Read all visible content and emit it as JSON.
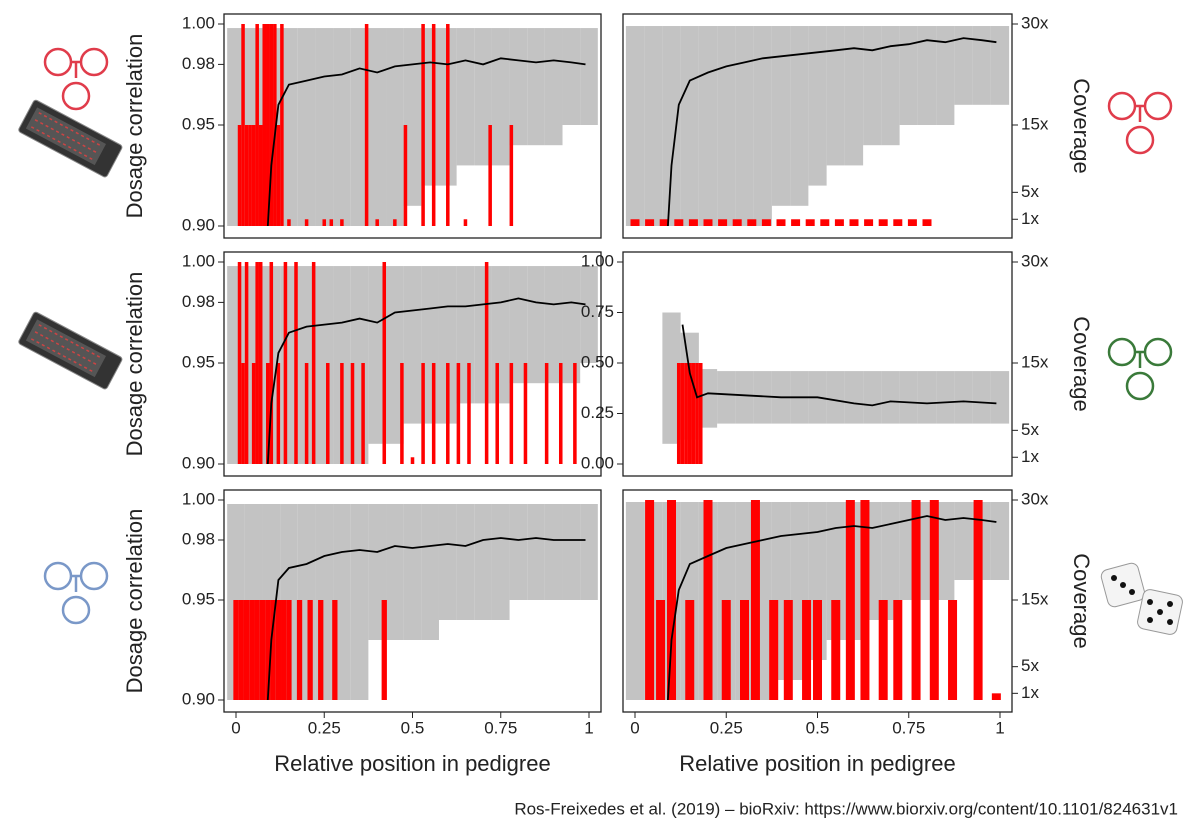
{
  "chart_data": [
    {
      "type": "scatter",
      "ylabel": "Dosage correlation",
      "xlim": [
        0,
        1
      ],
      "ylim": [
        0.9,
        1
      ],
      "y2lim": [
        0,
        30
      ],
      "yticks": [
        {
          "value": 0.9,
          "label": "0.90"
        },
        {
          "value": 0.95,
          "label": "0.95"
        },
        {
          "value": 0.98,
          "label": "0.98"
        },
        {
          "value": 1,
          "label": "1.00"
        }
      ],
      "cloud": {
        "color": "#bdbdbd",
        "x": [
          0,
          0.05,
          0.1,
          0.15,
          0.2,
          0.25,
          0.3,
          0.35,
          0.4,
          0.45,
          0.5,
          0.55,
          0.6,
          0.65,
          0.7,
          0.75,
          0.8,
          0.85,
          0.9,
          0.95,
          1
        ],
        "low": [
          0.9,
          0.9,
          0.9,
          0.9,
          0.9,
          0.9,
          0.9,
          0.9,
          0.9,
          0.9,
          0.91,
          0.92,
          0.92,
          0.93,
          0.93,
          0.93,
          0.94,
          0.94,
          0.94,
          0.95,
          0.95
        ],
        "high": [
          0.998,
          0.998,
          0.998,
          0.998,
          0.998,
          0.998,
          0.998,
          0.998,
          0.998,
          0.998,
          0.998,
          0.998,
          0.998,
          0.998,
          0.998,
          0.998,
          0.998,
          0.998,
          0.998,
          0.998,
          0.998
        ]
      },
      "line": {
        "color": "#000000",
        "x": [
          0.09,
          0.1,
          0.12,
          0.15,
          0.2,
          0.25,
          0.3,
          0.35,
          0.4,
          0.45,
          0.5,
          0.55,
          0.6,
          0.65,
          0.7,
          0.75,
          0.8,
          0.85,
          0.9,
          0.95,
          0.99
        ],
        "values": [
          0.9,
          0.93,
          0.96,
          0.97,
          0.972,
          0.974,
          0.975,
          0.978,
          0.976,
          0.979,
          0.98,
          0.981,
          0.98,
          0.982,
          0.98,
          0.983,
          0.982,
          0.981,
          0.982,
          0.981,
          0.98
        ]
      },
      "bars": {
        "color": "#ff0000",
        "axis": "y2",
        "x": [
          0.01,
          0.02,
          0.03,
          0.04,
          0.05,
          0.06,
          0.07,
          0.08,
          0.09,
          0.1,
          0.11,
          0.12,
          0.13,
          0.15,
          0.2,
          0.25,
          0.27,
          0.3,
          0.37,
          0.4,
          0.45,
          0.48,
          0.53,
          0.56,
          0.6,
          0.65,
          0.72,
          0.78
        ],
        "values": [
          15,
          30,
          15,
          15,
          15,
          30,
          15,
          30,
          30,
          30,
          30,
          15,
          30,
          1,
          1,
          1,
          1,
          1,
          30,
          1,
          1,
          15,
          30,
          30,
          30,
          1,
          15,
          15
        ]
      }
    },
    {
      "type": "scatter",
      "y2label": "Coverage",
      "xlim": [
        0,
        1
      ],
      "ylim": [
        0.9,
        1
      ],
      "y2lim": [
        0,
        30
      ],
      "y2ticks": [
        {
          "value": 1,
          "label": "1x"
        },
        {
          "value": 5,
          "label": "5x"
        },
        {
          "value": 15,
          "label": "15x"
        },
        {
          "value": 30,
          "label": "30x"
        }
      ],
      "cloud": {
        "color": "#bdbdbd",
        "x": [
          0,
          0.05,
          0.1,
          0.15,
          0.2,
          0.25,
          0.3,
          0.35,
          0.4,
          0.45,
          0.5,
          0.55,
          0.6,
          0.65,
          0.7,
          0.75,
          0.8,
          0.85,
          0.9,
          0.95,
          1
        ],
        "low": [
          0.9,
          0.9,
          0.9,
          0.9,
          0.9,
          0.9,
          0.9,
          0.9,
          0.91,
          0.91,
          0.92,
          0.93,
          0.93,
          0.94,
          0.94,
          0.95,
          0.95,
          0.95,
          0.96,
          0.96,
          0.96
        ],
        "high": [
          0.999,
          0.999,
          0.999,
          0.999,
          0.999,
          0.999,
          0.999,
          0.999,
          0.999,
          0.999,
          0.999,
          0.999,
          0.999,
          0.999,
          0.999,
          0.999,
          0.999,
          0.999,
          0.999,
          0.999,
          0.999
        ]
      },
      "line": {
        "color": "#000000",
        "x": [
          0.09,
          0.1,
          0.12,
          0.15,
          0.2,
          0.25,
          0.3,
          0.35,
          0.4,
          0.45,
          0.5,
          0.55,
          0.6,
          0.65,
          0.7,
          0.75,
          0.8,
          0.85,
          0.9,
          0.95,
          0.99
        ],
        "values": [
          0.9,
          0.93,
          0.96,
          0.972,
          0.976,
          0.979,
          0.981,
          0.983,
          0.984,
          0.985,
          0.986,
          0.987,
          0.988,
          0.987,
          0.989,
          0.99,
          0.992,
          0.991,
          0.993,
          0.992,
          0.991
        ]
      },
      "bars": {
        "color": "#ff0000",
        "axis": "y2",
        "x": [
          0,
          0.04,
          0.08,
          0.12,
          0.16,
          0.2,
          0.24,
          0.28,
          0.32,
          0.36,
          0.4,
          0.44,
          0.48,
          0.52,
          0.56,
          0.6,
          0.64,
          0.68,
          0.72,
          0.76,
          0.8
        ],
        "values": [
          1,
          1,
          1,
          1,
          1,
          1,
          1,
          1,
          1,
          1,
          1,
          1,
          1,
          1,
          1,
          1,
          1,
          1,
          1,
          1,
          1
        ]
      }
    },
    {
      "type": "scatter",
      "ylabel": "Dosage correlation",
      "xlim": [
        0,
        1
      ],
      "ylim": [
        0.9,
        1
      ],
      "y2lim": [
        0,
        30
      ],
      "yticks": [
        {
          "value": 0.9,
          "label": "0.90"
        },
        {
          "value": 0.95,
          "label": "0.95"
        },
        {
          "value": 0.98,
          "label": "0.98"
        },
        {
          "value": 1,
          "label": "1.00"
        }
      ],
      "cloud": {
        "color": "#bdbdbd",
        "x": [
          0,
          0.05,
          0.1,
          0.15,
          0.2,
          0.25,
          0.3,
          0.35,
          0.4,
          0.45,
          0.5,
          0.55,
          0.6,
          0.65,
          0.7,
          0.75,
          0.8,
          0.85,
          0.9,
          0.95,
          1
        ],
        "low": [
          0.9,
          0.9,
          0.9,
          0.9,
          0.9,
          0.9,
          0.9,
          0.9,
          0.91,
          0.91,
          0.92,
          0.92,
          0.92,
          0.93,
          0.93,
          0.93,
          0.94,
          0.94,
          0.94,
          0.94,
          0.95
        ],
        "high": [
          0.998,
          0.998,
          0.998,
          0.998,
          0.998,
          0.998,
          0.998,
          0.998,
          0.998,
          0.998,
          0.998,
          0.998,
          0.998,
          0.998,
          0.998,
          0.998,
          0.998,
          0.998,
          0.998,
          0.998,
          0.998
        ]
      },
      "line": {
        "color": "#000000",
        "x": [
          0.09,
          0.1,
          0.12,
          0.15,
          0.2,
          0.25,
          0.3,
          0.35,
          0.4,
          0.45,
          0.5,
          0.55,
          0.6,
          0.65,
          0.7,
          0.75,
          0.8,
          0.85,
          0.9,
          0.95,
          0.99
        ],
        "values": [
          0.9,
          0.93,
          0.955,
          0.965,
          0.968,
          0.969,
          0.97,
          0.972,
          0.97,
          0.975,
          0.976,
          0.977,
          0.978,
          0.978,
          0.979,
          0.98,
          0.982,
          0.98,
          0.979,
          0.98,
          0.979
        ]
      },
      "bars": {
        "color": "#ff0000",
        "axis": "y2",
        "x": [
          0.01,
          0.02,
          0.03,
          0.05,
          0.06,
          0.07,
          0.09,
          0.1,
          0.12,
          0.14,
          0.17,
          0.2,
          0.22,
          0.26,
          0.3,
          0.33,
          0.36,
          0.42,
          0.47,
          0.5,
          0.53,
          0.56,
          0.6,
          0.63,
          0.66,
          0.71,
          0.74,
          0.78,
          0.82,
          0.88,
          0.92,
          0.96
        ],
        "values": [
          30,
          15,
          30,
          15,
          30,
          30,
          15,
          30,
          15,
          30,
          30,
          15,
          30,
          15,
          15,
          15,
          15,
          30,
          15,
          1,
          15,
          15,
          15,
          15,
          15,
          30,
          15,
          15,
          15,
          15,
          15,
          15
        ]
      }
    },
    {
      "type": "scatter",
      "y2label": "Coverage",
      "xlim": [
        0,
        1
      ],
      "ylim": [
        0,
        1
      ],
      "y2lim": [
        0,
        30
      ],
      "yticks": [
        {
          "value": 0,
          "label": "0.00"
        },
        0.25,
        {
          "value": 0.5,
          "label": "0.50"
        },
        0.75,
        {
          "value": 1,
          "label": "1.00"
        }
      ],
      "y2ticks": [
        {
          "value": 1,
          "label": "1x"
        },
        {
          "value": 5,
          "label": "5x"
        },
        {
          "value": 15,
          "label": "15x"
        },
        {
          "value": 30,
          "label": "30x"
        }
      ],
      "cloud": {
        "color": "#bdbdbd",
        "x": [
          0,
          0.05,
          0.1,
          0.15,
          0.2,
          0.25,
          0.3,
          0.35,
          0.4,
          0.45,
          0.5,
          0.55,
          0.6,
          0.65,
          0.7,
          0.75,
          0.8,
          0.85,
          0.9,
          0.95,
          1
        ],
        "low": [
          null,
          null,
          0.1,
          0.12,
          0.18,
          0.2,
          0.2,
          0.2,
          0.2,
          0.2,
          0.2,
          0.2,
          0.2,
          0.2,
          0.2,
          0.2,
          0.2,
          0.2,
          0.2,
          0.2,
          0.2
        ],
        "high": [
          null,
          null,
          0.75,
          0.65,
          0.47,
          0.46,
          0.46,
          0.46,
          0.46,
          0.46,
          0.46,
          0.46,
          0.46,
          0.46,
          0.46,
          0.46,
          0.46,
          0.46,
          0.46,
          0.46,
          0.46
        ]
      },
      "line": {
        "color": "#000000",
        "x": [
          0.13,
          0.15,
          0.17,
          0.2,
          0.3,
          0.4,
          0.5,
          0.6,
          0.65,
          0.7,
          0.8,
          0.9,
          0.99
        ],
        "values": [
          0.69,
          0.45,
          0.33,
          0.35,
          0.34,
          0.33,
          0.33,
          0.3,
          0.29,
          0.31,
          0.3,
          0.31,
          0.3
        ]
      },
      "bars": {
        "color": "#ff0000",
        "axis": "y2",
        "x": [
          0.12,
          0.13,
          0.14,
          0.15,
          0.16,
          0.17,
          0.18
        ],
        "values": [
          15,
          15,
          15,
          15,
          15,
          15,
          15
        ]
      }
    },
    {
      "type": "scatter",
      "ylabel": "Dosage correlation",
      "xlabel": "Relative position in pedigree",
      "xlim": [
        0,
        1
      ],
      "ylim": [
        0.9,
        1
      ],
      "y2lim": [
        0,
        30
      ],
      "xticks": [
        0,
        0.25,
        0.5,
        0.75,
        1
      ],
      "yticks": [
        {
          "value": 0.9,
          "label": "0.90"
        },
        {
          "value": 0.95,
          "label": "0.95"
        },
        {
          "value": 0.98,
          "label": "0.98"
        },
        {
          "value": 1,
          "label": "1.00"
        }
      ],
      "cloud": {
        "color": "#bdbdbd",
        "x": [
          0,
          0.05,
          0.1,
          0.15,
          0.2,
          0.25,
          0.3,
          0.35,
          0.4,
          0.45,
          0.5,
          0.55,
          0.6,
          0.65,
          0.7,
          0.75,
          0.8,
          0.85,
          0.9,
          0.95,
          1
        ],
        "low": [
          0.9,
          0.9,
          0.9,
          0.9,
          0.9,
          0.9,
          0.9,
          0.9,
          0.93,
          0.93,
          0.93,
          0.93,
          0.94,
          0.94,
          0.94,
          0.94,
          0.95,
          0.95,
          0.95,
          0.95,
          0.95
        ],
        "high": [
          0.998,
          0.998,
          0.998,
          0.998,
          0.998,
          0.998,
          0.998,
          0.998,
          0.998,
          0.998,
          0.998,
          0.998,
          0.998,
          0.998,
          0.998,
          0.998,
          0.998,
          0.998,
          0.998,
          0.998,
          0.998
        ]
      },
      "line": {
        "color": "#000000",
        "x": [
          0.09,
          0.1,
          0.12,
          0.15,
          0.2,
          0.25,
          0.3,
          0.35,
          0.4,
          0.45,
          0.5,
          0.55,
          0.6,
          0.65,
          0.7,
          0.75,
          0.8,
          0.85,
          0.9,
          0.95,
          0.99
        ],
        "values": [
          0.9,
          0.93,
          0.96,
          0.966,
          0.968,
          0.972,
          0.974,
          0.975,
          0.974,
          0.977,
          0.976,
          0.977,
          0.978,
          0.977,
          0.98,
          0.981,
          0.98,
          0.981,
          0.98,
          0.98,
          0.98
        ]
      },
      "bars": {
        "color": "#ff0000",
        "axis": "y2",
        "x": [
          0,
          0.015,
          0.03,
          0.045,
          0.06,
          0.075,
          0.09,
          0.105,
          0.12,
          0.135,
          0.15,
          0.18,
          0.21,
          0.24,
          0.28,
          0.42
        ],
        "values": [
          15,
          15,
          15,
          15,
          15,
          15,
          15,
          15,
          15,
          15,
          15,
          15,
          15,
          15,
          15,
          15
        ]
      }
    },
    {
      "type": "scatter",
      "y2label": "Coverage",
      "xlabel": "Relative position in pedigree",
      "xlim": [
        0,
        1
      ],
      "ylim": [
        0.9,
        1
      ],
      "y2lim": [
        0,
        30
      ],
      "xticks": [
        0,
        0.25,
        0.5,
        0.75,
        1
      ],
      "y2ticks": [
        {
          "value": 1,
          "label": "1x"
        },
        {
          "value": 5,
          "label": "5x"
        },
        {
          "value": 15,
          "label": "15x"
        },
        {
          "value": 30,
          "label": "30x"
        }
      ],
      "cloud": {
        "color": "#bdbdbd",
        "x": [
          0,
          0.05,
          0.1,
          0.15,
          0.2,
          0.25,
          0.3,
          0.35,
          0.4,
          0.45,
          0.5,
          0.55,
          0.6,
          0.65,
          0.7,
          0.75,
          0.8,
          0.85,
          0.9,
          0.95,
          1
        ],
        "low": [
          0.9,
          0.9,
          0.9,
          0.9,
          0.9,
          0.9,
          0.9,
          0.9,
          0.91,
          0.91,
          0.92,
          0.93,
          0.93,
          0.94,
          0.94,
          0.95,
          0.95,
          0.95,
          0.96,
          0.96,
          0.96
        ],
        "high": [
          0.999,
          0.999,
          0.999,
          0.999,
          0.999,
          0.999,
          0.999,
          0.999,
          0.999,
          0.999,
          0.999,
          0.999,
          0.999,
          0.999,
          0.999,
          0.999,
          0.999,
          0.999,
          0.999,
          0.999,
          0.999
        ]
      },
      "line": {
        "color": "#000000",
        "x": [
          0.09,
          0.1,
          0.12,
          0.15,
          0.2,
          0.25,
          0.3,
          0.35,
          0.4,
          0.45,
          0.5,
          0.55,
          0.6,
          0.65,
          0.7,
          0.75,
          0.8,
          0.85,
          0.9,
          0.95,
          0.99
        ],
        "values": [
          0.9,
          0.93,
          0.955,
          0.968,
          0.972,
          0.976,
          0.978,
          0.98,
          0.982,
          0.983,
          0.984,
          0.986,
          0.987,
          0.986,
          0.988,
          0.99,
          0.992,
          0.99,
          0.991,
          0.99,
          0.989
        ]
      },
      "bars": {
        "color": "#ff0000",
        "axis": "y2",
        "x": [
          0.04,
          0.07,
          0.1,
          0.15,
          0.2,
          0.25,
          0.3,
          0.33,
          0.38,
          0.42,
          0.47,
          0.5,
          0.55,
          0.59,
          0.63,
          0.68,
          0.72,
          0.77,
          0.82,
          0.87,
          0.94,
          0.99
        ],
        "values": [
          30,
          15,
          30,
          15,
          30,
          15,
          15,
          30,
          15,
          15,
          15,
          15,
          15,
          30,
          30,
          15,
          15,
          30,
          30,
          15,
          30,
          1
        ]
      }
    }
  ],
  "caption": "Ros-Freixedes et al. (2019) – bioRxiv: https://www.biorxiv.org/content/10.1101/824631v1"
}
